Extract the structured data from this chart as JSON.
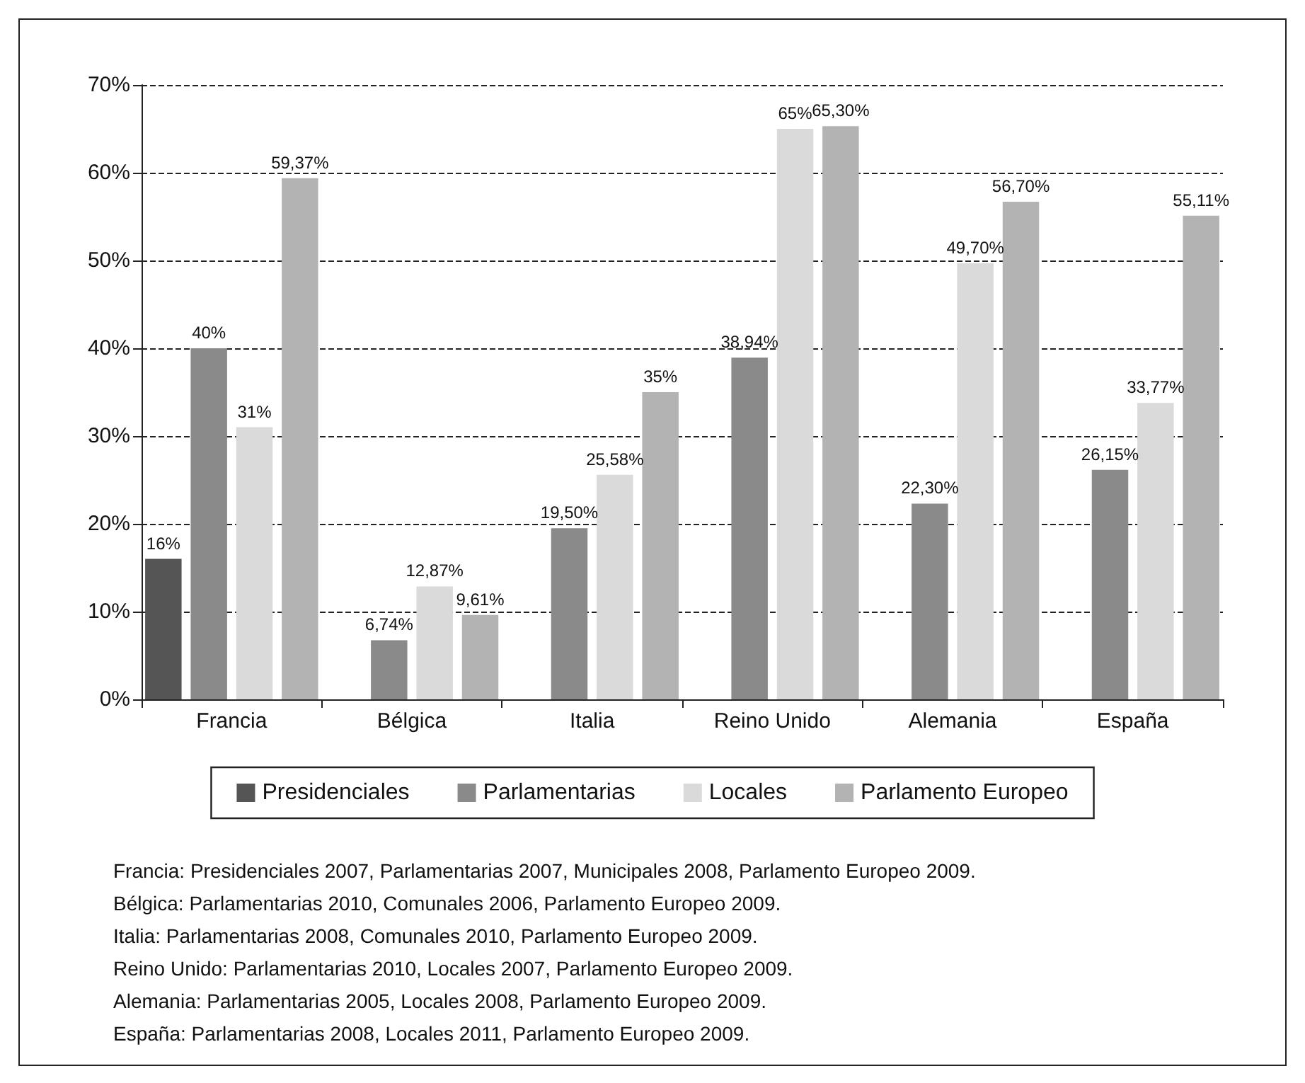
{
  "chart_data": {
    "type": "bar",
    "categories": [
      "Francia",
      "Bélgica",
      "Italia",
      "Reino Unido",
      "Alemania",
      "España"
    ],
    "series": [
      {
        "name": "Presidenciales",
        "color": "#555555",
        "values": [
          16,
          null,
          null,
          null,
          null,
          null
        ],
        "value_labels": [
          "16%",
          null,
          null,
          null,
          null,
          null
        ]
      },
      {
        "name": "Parlamentarias",
        "color": "#8a8a8a",
        "values": [
          40,
          6.74,
          19.5,
          38.94,
          22.3,
          26.15
        ],
        "value_labels": [
          "40%",
          "6,74%",
          "19,50%",
          "38,94%",
          "22,30%",
          "26,15%"
        ]
      },
      {
        "name": "Locales",
        "color": "#dadada",
        "values": [
          31,
          12.87,
          25.58,
          65,
          49.7,
          33.77
        ],
        "value_labels": [
          "31%",
          "12,87%",
          "25,58%",
          "65%",
          "49,70%",
          "33,77%"
        ]
      },
      {
        "name": "Parlamento Europeo",
        "color": "#b3b3b3",
        "values": [
          59.37,
          9.61,
          35,
          65.3,
          56.7,
          55.11
        ],
        "value_labels": [
          "59,37%",
          "9,61%",
          "35%",
          "65,30%",
          "56,70%",
          "55,11%"
        ]
      }
    ],
    "ylim": [
      0,
      70
    ],
    "yticks": [
      {
        "value": 0,
        "label": "0%"
      },
      {
        "value": 10,
        "label": "10%"
      },
      {
        "value": 20,
        "label": "20%"
      },
      {
        "value": 30,
        "label": "30%"
      },
      {
        "value": 40,
        "label": "40%"
      },
      {
        "value": 50,
        "label": "50%"
      },
      {
        "value": 60,
        "label": "60%"
      },
      {
        "value": 70,
        "label": "70%"
      }
    ],
    "grid": "y",
    "line_style": "dashed",
    "legend": "bottom",
    "annotations": [
      "Francia: Presidenciales 2007, Parlamentarias 2007, Municipales 2008, Parlamento Europeo 2009.",
      "Bélgica: Parlamentarias 2010, Comunales 2006, Parlamento Europeo 2009.",
      "Italia: Parlamentarias 2008, Comunales 2010, Parlamento Europeo 2009.",
      "Reino Unido: Parlamentarias 2010, Locales 2007, Parlamento Europeo 2009.",
      "Alemania: Parlamentarias 2005, Locales 2008, Parlamento Europeo 2009.",
      "España: Parlamentarias 2008, Locales 2011, Parlamento Europeo 2009."
    ]
  }
}
